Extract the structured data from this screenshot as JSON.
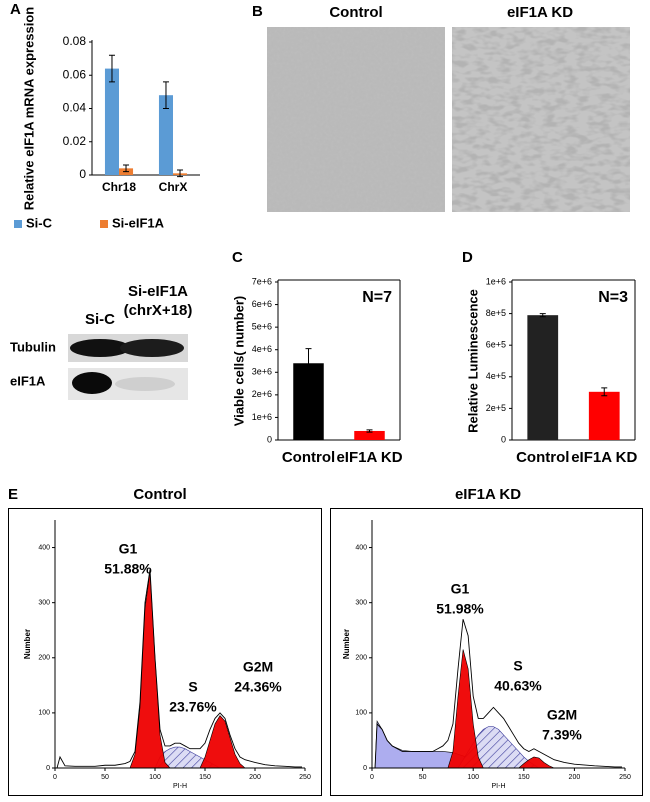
{
  "images": {
    "panel": "B",
    "titles": [
      "Control",
      "eIF1A KD"
    ]
  },
  "blot": {
    "lanes": [
      [
        "Si-C"
      ],
      [
        "Si-eIF1A",
        "(chrX+18)"
      ]
    ],
    "rows": [
      "Tubulin",
      "eIF1A"
    ]
  },
  "chart_data": [
    {
      "type": "bar",
      "panel": "A",
      "ylabel": "Relative eIF1A mRNA expression",
      "categories": [
        "Chr18",
        "ChrX"
      ],
      "series": [
        {
          "name": "Si-C",
          "color": "#5b9bd5",
          "values": [
            0.064,
            0.048
          ],
          "errors": [
            0.008,
            0.008
          ]
        },
        {
          "name": "Si-eIF1A",
          "color": "#ed7d31",
          "values": [
            0.004,
            0.001
          ],
          "errors": [
            0.002,
            0.002
          ]
        }
      ],
      "ylim": [
        0,
        0.08
      ],
      "yticks": [
        0,
        0.02,
        0.04,
        0.06,
        0.08
      ]
    },
    {
      "type": "bar",
      "panel": "C",
      "ylabel": "Viable cells( number)",
      "annotation": "N=7",
      "categories": [
        "Control",
        "eIF1A KD"
      ],
      "series": [
        {
          "colors": [
            "#000000",
            "#ff0000"
          ],
          "values": [
            3400000,
            400000
          ],
          "errors": [
            650000,
            50000
          ]
        }
      ],
      "ylim": [
        0,
        7000000
      ],
      "yticks": [
        0,
        {
          "value": 1000000,
          "label": "1e+6"
        },
        {
          "value": 2000000,
          "label": "2e+6"
        },
        {
          "value": 3000000,
          "label": "3e+6"
        },
        {
          "value": 4000000,
          "label": "4e+6"
        },
        {
          "value": 5000000,
          "label": "5e+6"
        },
        {
          "value": 6000000,
          "label": "6e+6"
        },
        {
          "value": 7000000,
          "label": "7e+6"
        }
      ]
    },
    {
      "type": "bar",
      "panel": "D",
      "ylabel": "Relative Luminescence",
      "annotation": "N=3",
      "categories": [
        "Control",
        "eIF1A KD"
      ],
      "series": [
        {
          "colors": [
            "#222222",
            "#ff0000"
          ],
          "values": [
            790000,
            305000
          ],
          "errors": [
            10000,
            25000
          ]
        }
      ],
      "ylim": [
        0,
        1000000
      ],
      "yticks": [
        0,
        {
          "value": 200000,
          "label": "2e+5"
        },
        {
          "value": 400000,
          "label": "4e+5"
        },
        {
          "value": 600000,
          "label": "6e+5"
        },
        {
          "value": 800000,
          "label": "8e+5"
        },
        {
          "value": 1000000,
          "label": "1e+6"
        }
      ]
    },
    {
      "type": "area",
      "panel": "E",
      "title": "Control",
      "xlabel": "PI-H",
      "ylabel": "Number",
      "xlim": [
        0,
        250
      ],
      "xticks": [
        0,
        50,
        100,
        150,
        200,
        250
      ],
      "ylim": [
        0,
        450
      ],
      "yticks": [
        0,
        100,
        200,
        300,
        400
      ],
      "series": [
        {
          "name": "S",
          "label": "23.76%",
          "style": "hatch",
          "color": "#3a3a9a",
          "x": [
            100,
            105,
            110,
            115,
            120,
            125,
            130,
            135,
            140,
            145,
            150,
            155,
            160,
            165
          ],
          "values": [
            0,
            20,
            30,
            35,
            38,
            38,
            35,
            30,
            25,
            20,
            15,
            10,
            5,
            0
          ]
        },
        {
          "name": "G1",
          "label": "51.88%",
          "style": "solid",
          "color": "#ee0000",
          "x": [
            75,
            80,
            85,
            90,
            95,
            100,
            105,
            110,
            115
          ],
          "values": [
            0,
            25,
            110,
            290,
            355,
            200,
            60,
            10,
            0
          ]
        },
        {
          "name": "G2M",
          "label": "24.36%",
          "style": "solid",
          "color": "#ee0000",
          "x": [
            145,
            150,
            155,
            160,
            165,
            170,
            175,
            180,
            185,
            190
          ],
          "values": [
            0,
            20,
            50,
            80,
            95,
            85,
            55,
            25,
            8,
            0
          ]
        },
        {
          "style": "line",
          "color": "#000000",
          "x": [
            2,
            5,
            10,
            20,
            30,
            40,
            50,
            60,
            70,
            75,
            80,
            85,
            90,
            95,
            100,
            105,
            110,
            115,
            120,
            125,
            130,
            135,
            140,
            145,
            150,
            155,
            160,
            165,
            170,
            175,
            180,
            185,
            190,
            200,
            210,
            220,
            230,
            240,
            247
          ],
          "values": [
            0,
            20,
            4,
            3,
            3,
            3,
            5,
            5,
            8,
            12,
            30,
            120,
            300,
            360,
            200,
            70,
            40,
            40,
            45,
            45,
            40,
            35,
            35,
            35,
            45,
            70,
            90,
            100,
            90,
            60,
            35,
            20,
            15,
            10,
            6,
            4,
            3,
            2,
            2
          ]
        }
      ]
    },
    {
      "type": "area",
      "title": "eIF1A KD",
      "xlabel": "PI-H",
      "ylabel": "Number",
      "xlim": [
        0,
        250
      ],
      "xticks": [
        0,
        50,
        100,
        150,
        200,
        250
      ],
      "ylim": [
        0,
        450
      ],
      "yticks": [
        0,
        100,
        200,
        300,
        400
      ],
      "series": [
        {
          "style": "solid",
          "color": "#a9a9ee",
          "x": [
            3,
            5,
            10,
            15,
            20,
            30,
            40,
            50,
            60,
            70,
            80,
            90,
            100,
            110,
            120
          ],
          "values": [
            0,
            85,
            70,
            50,
            40,
            32,
            30,
            30,
            30,
            30,
            28,
            22,
            14,
            6,
            0
          ]
        },
        {
          "name": "S",
          "label": "40.63%",
          "style": "hatch",
          "color": "#3a3a9a",
          "x": [
            85,
            90,
            95,
            100,
            105,
            110,
            115,
            120,
            125,
            130,
            135,
            140,
            145,
            150,
            155,
            160,
            165
          ],
          "values": [
            0,
            15,
            30,
            45,
            60,
            70,
            75,
            75,
            70,
            60,
            50,
            40,
            30,
            20,
            12,
            6,
            0
          ]
        },
        {
          "name": "G1",
          "label": "51.98%",
          "style": "solid",
          "color": "#ee0000",
          "x": [
            75,
            80,
            85,
            90,
            95,
            100,
            105,
            110
          ],
          "values": [
            0,
            30,
            130,
            215,
            180,
            80,
            20,
            0
          ]
        },
        {
          "name": "G2M",
          "label": "7.39%",
          "style": "solid",
          "color": "#ee0000",
          "x": [
            145,
            150,
            155,
            160,
            165,
            170,
            175,
            180
          ],
          "values": [
            0,
            8,
            15,
            20,
            18,
            10,
            4,
            0
          ]
        },
        {
          "style": "line",
          "color": "#000000",
          "x": [
            3,
            5,
            10,
            15,
            20,
            25,
            30,
            40,
            50,
            60,
            65,
            70,
            75,
            80,
            85,
            90,
            95,
            100,
            105,
            110,
            115,
            120,
            125,
            130,
            135,
            140,
            145,
            150,
            155,
            160,
            165,
            170,
            175,
            180,
            190,
            200,
            220,
            240,
            247
          ],
          "values": [
            0,
            80,
            70,
            50,
            40,
            35,
            30,
            30,
            30,
            30,
            35,
            40,
            50,
            80,
            180,
            270,
            240,
            130,
            90,
            90,
            100,
            110,
            100,
            90,
            75,
            60,
            45,
            35,
            30,
            35,
            30,
            25,
            20,
            15,
            10,
            7,
            4,
            2,
            2
          ]
        }
      ]
    }
  ]
}
